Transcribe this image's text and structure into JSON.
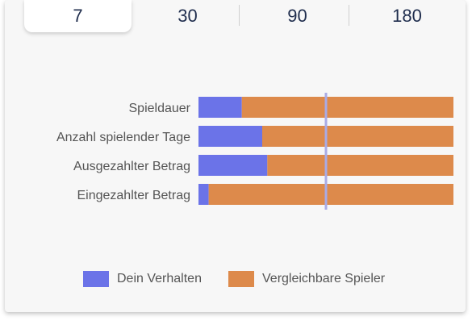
{
  "tabs": [
    {
      "label": "7",
      "active": true
    },
    {
      "label": "30",
      "active": false
    },
    {
      "label": "90",
      "active": false
    },
    {
      "label": "180",
      "active": false
    }
  ],
  "colors": {
    "yours": "#6b73e8",
    "comparable": "#dd8a4b",
    "reference_line": "#a9abe6",
    "label_text": "#555555"
  },
  "chart_data": {
    "type": "bar",
    "orientation": "horizontal",
    "stacked": "percent",
    "categories": [
      "Spieldauer",
      "Anzahl spielender Tage",
      "Ausgezahlter Betrag",
      "Eingezahlter Betrag"
    ],
    "series": [
      {
        "name": "Dein Verhalten",
        "values": [
          17,
          25,
          27,
          4
        ]
      },
      {
        "name": "Vergleichbare Spieler",
        "values": [
          83,
          75,
          73,
          96
        ]
      }
    ],
    "reference_line": 50,
    "xlim": [
      0,
      100
    ],
    "legend": "bottom"
  }
}
